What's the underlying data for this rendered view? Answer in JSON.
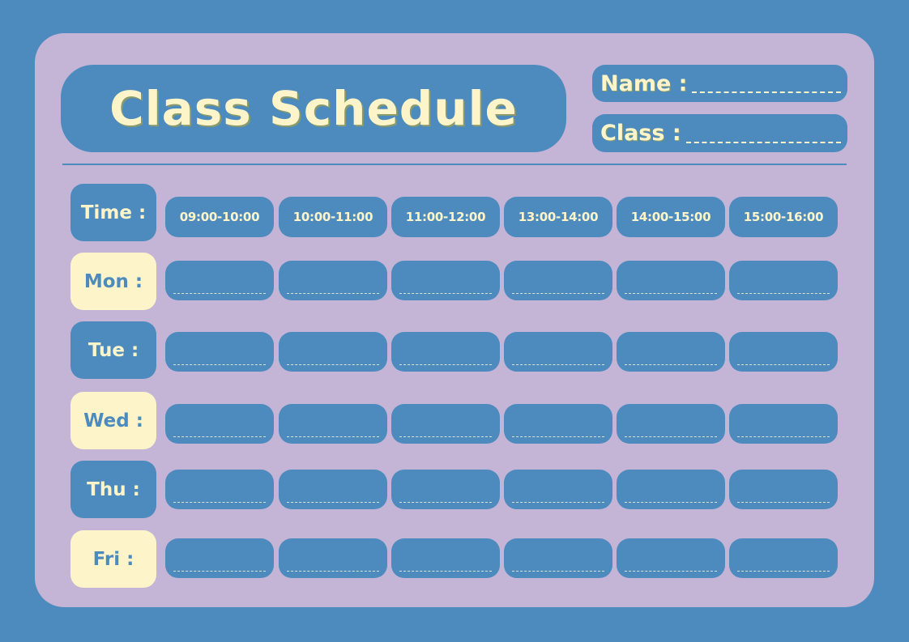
{
  "title": "Class Schedule",
  "fields": {
    "name_label": "Name :",
    "class_label": "Class :"
  },
  "time_label": "Time :",
  "time_slots": [
    "09:00-10:00",
    "10:00-11:00",
    "11:00-12:00",
    "13:00-14:00",
    "14:00-15:00",
    "15:00-16:00"
  ],
  "days": [
    {
      "label": "Mon :",
      "style": "cream"
    },
    {
      "label": "Tue :",
      "style": "blue"
    },
    {
      "label": "Wed :",
      "style": "cream"
    },
    {
      "label": "Thu :",
      "style": "blue"
    },
    {
      "label": "Fri :",
      "style": "cream"
    }
  ],
  "colors": {
    "background": "#4d8bbf",
    "card": "#c4b4d6",
    "accent": "#fdf5c9"
  }
}
